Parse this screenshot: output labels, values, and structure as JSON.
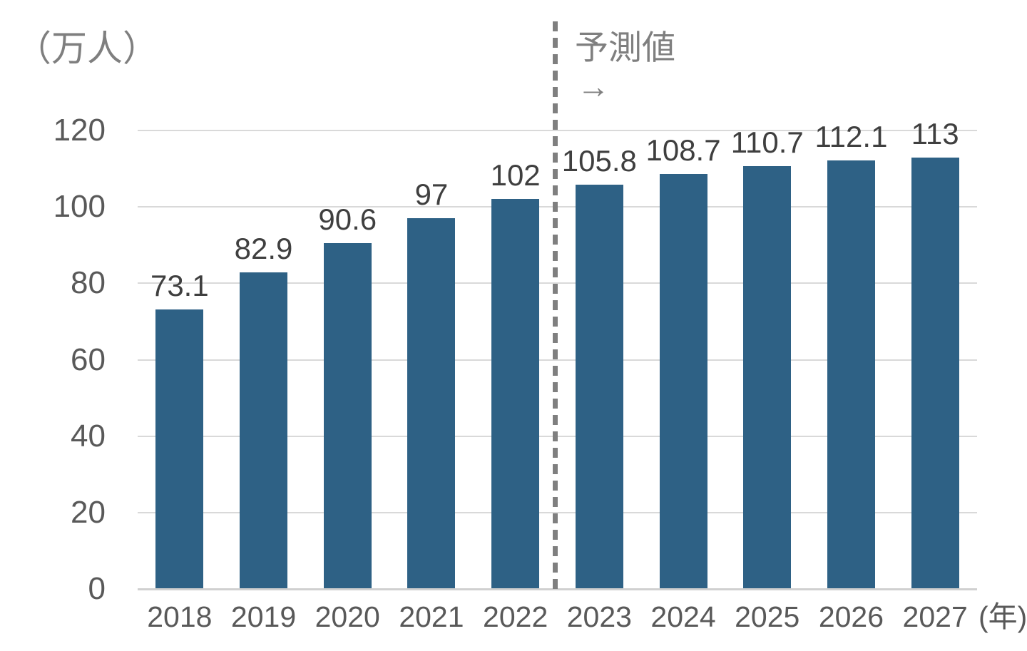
{
  "chart_data": {
    "type": "bar",
    "title": "",
    "y_unit_label": "（万人）",
    "x_unit_label": "(年)",
    "categories": [
      "2018",
      "2019",
      "2020",
      "2021",
      "2022",
      "2023",
      "2024",
      "2025",
      "2026",
      "2027"
    ],
    "values": [
      73.1,
      82.9,
      90.6,
      97,
      102,
      105.8,
      108.7,
      110.7,
      112.1,
      113
    ],
    "value_labels": [
      "73.1",
      "82.9",
      "90.6",
      "97",
      "102",
      "105.8",
      "108.7",
      "110.7",
      "112.1",
      "113"
    ],
    "yticks": [
      0,
      20,
      40,
      60,
      80,
      100,
      120
    ],
    "ylim": [
      0,
      120
    ],
    "grid": true,
    "legend": null,
    "annotation": {
      "text": "予測値",
      "arrow": "→",
      "forecast_start_category": "2023"
    },
    "colors": {
      "bar": "#2e6185",
      "gridline": "#d9d9d9",
      "axis_line": "#d0d0d0",
      "tick_text": "#595959",
      "value_label_text": "#3f3f3f",
      "annotation_text": "#7f7f7f",
      "divider": "#7f7f7f",
      "background": "#ffffff"
    }
  }
}
